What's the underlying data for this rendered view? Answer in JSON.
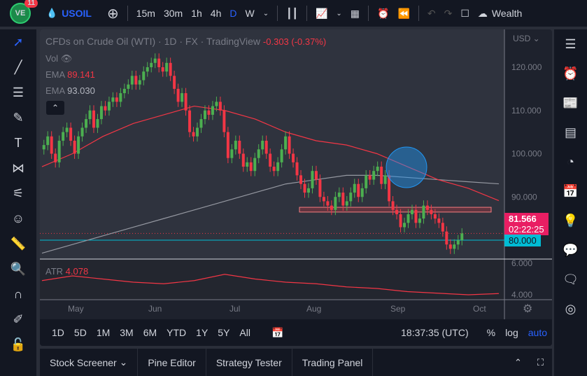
{
  "header": {
    "badge": "11",
    "logo": "VE",
    "symbol": "USOIL",
    "intervals": [
      "15m",
      "30m",
      "1h",
      "4h",
      "D",
      "W"
    ],
    "active_interval": "D",
    "wealth": "Wealth"
  },
  "chart": {
    "title": "CFDs on Crude Oil (WTI) · 1D · FX  · TradingView",
    "change": "-0.303 (-0.37%)",
    "vol": "Vol",
    "ema1_label": "EMA",
    "ema1_value": "89.141",
    "ema2_label": "EMA",
    "ema2_value": "93.030",
    "currency": "USD",
    "last_price": "81.566",
    "countdown": "02:22:25",
    "line_price": "80.000",
    "atr_label": "ATR",
    "atr_value": "4.078",
    "time": "18:37:35 (UTC)"
  },
  "colors": {
    "up": "#26a69a",
    "candle_up": "#4caf50",
    "down": "#f23645",
    "ema50": "#f23645",
    "ema200": "#9598a1",
    "line80": "#00bcd4",
    "accent": "#2962ff"
  },
  "chart_data": {
    "type": "candlestick",
    "yticks": [
      "120.000",
      "110.000",
      "100.000",
      "90.000"
    ],
    "atr_ticks": [
      "6.000",
      "4.000"
    ],
    "xticks": [
      "May",
      "Jun",
      "Jul",
      "Aug",
      "Sep",
      "Oct"
    ],
    "closes": [
      102,
      104,
      100,
      98,
      103,
      105,
      106,
      103,
      100,
      104,
      106,
      108,
      110,
      106,
      108,
      111,
      110,
      112,
      113,
      112,
      114,
      115,
      116,
      118,
      116,
      117,
      119,
      120,
      121,
      122,
      120,
      119,
      121,
      118,
      115,
      112,
      114,
      110,
      105,
      104,
      106,
      108,
      110,
      109,
      111,
      112,
      110,
      105,
      99,
      101,
      103,
      100,
      97,
      98,
      96,
      99,
      101,
      103,
      100,
      97,
      96,
      98,
      101,
      104,
      100,
      98,
      95,
      93,
      91,
      92,
      96,
      94,
      90,
      89,
      88,
      87,
      90,
      91,
      88,
      89,
      91,
      93,
      90,
      92,
      95,
      94,
      96,
      97,
      93,
      95,
      89,
      87,
      86,
      83,
      84,
      86,
      87,
      84,
      85,
      88,
      87,
      86,
      85,
      84,
      82,
      79,
      78,
      79,
      80,
      81.566
    ],
    "ema_fast": [
      97,
      100,
      104,
      107,
      109,
      111,
      110,
      108,
      105,
      103,
      102,
      100,
      97,
      94,
      92,
      89.141
    ],
    "ema_slow": [
      77,
      79,
      81,
      83,
      85,
      87,
      89,
      91,
      93,
      94,
      95,
      95,
      94.5,
      94,
      93.5,
      93.03
    ],
    "atr": [
      4.9,
      5.2,
      5.0,
      4.8,
      4.7,
      4.9,
      5.3,
      5.0,
      4.8,
      4.7,
      4.5,
      4.4,
      4.2,
      4.1,
      4.0,
      4.078
    ],
    "zone": [
      86.5,
      87.6
    ],
    "horizontal_line": 80,
    "ylim": [
      76,
      130
    ]
  },
  "range": {
    "buttons": [
      "1D",
      "5D",
      "1M",
      "3M",
      "6M",
      "YTD",
      "1Y",
      "5Y",
      "All"
    ],
    "pct": "%",
    "log": "log",
    "auto": "auto"
  },
  "bottom": {
    "tabs": [
      "Stock Screener",
      "Pine Editor",
      "Strategy Tester",
      "Trading Panel"
    ]
  }
}
